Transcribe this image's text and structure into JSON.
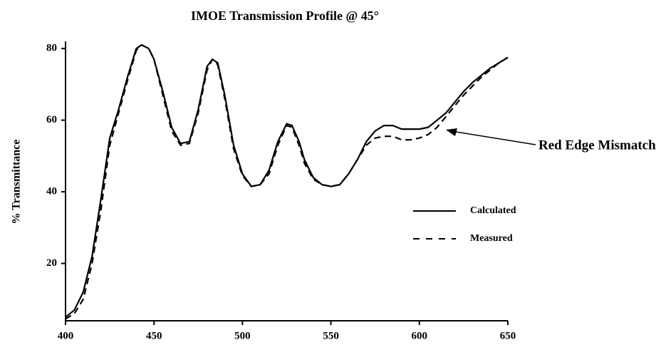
{
  "chart_data": {
    "type": "line",
    "title": "IMOE Transmission Profile @ 45°",
    "y_label": "% Transmittance",
    "annotation": "Red Edge Mismatch",
    "x": [
      400,
      405,
      410,
      415,
      420,
      425,
      430,
      435,
      440,
      443,
      447,
      450,
      455,
      460,
      465,
      470,
      475,
      480,
      483,
      486,
      490,
      495,
      500,
      505,
      510,
      515,
      520,
      525,
      528,
      532,
      535,
      540,
      545,
      550,
      555,
      560,
      565,
      570,
      575,
      580,
      585,
      590,
      595,
      600,
      605,
      610,
      615,
      620,
      625,
      630,
      635,
      640,
      645,
      650
    ],
    "series": [
      {
        "name": "Calculated",
        "color": "#000000",
        "dash": false,
        "values": [
          5,
          7,
          12,
          22,
          38,
          55,
          63,
          72,
          80,
          81,
          80,
          77,
          68,
          58,
          53.5,
          54,
          63,
          75,
          77,
          76,
          67,
          53,
          45,
          41.5,
          42,
          46,
          54,
          59,
          58.5,
          54,
          49,
          44,
          42,
          41.5,
          42,
          45,
          49,
          54,
          57,
          58.5,
          58.5,
          57.5,
          57.5,
          57.5,
          58,
          60,
          62,
          65,
          68,
          70.5,
          72.5,
          74.5,
          76,
          77.5
        ]
      },
      {
        "name": "Measured",
        "color": "#000000",
        "dash": true,
        "values": [
          4.5,
          6,
          10,
          20,
          35,
          53,
          62,
          71,
          79.5,
          81,
          80,
          77,
          67,
          57,
          53,
          53.5,
          62,
          74,
          77,
          75.5,
          66,
          52,
          44.5,
          41.5,
          42,
          45,
          53,
          58.5,
          58,
          53,
          48,
          43.5,
          42,
          41.5,
          42,
          45,
          49,
          53,
          55,
          55.5,
          55.5,
          54.5,
          54.5,
          55,
          56,
          58,
          61,
          64,
          67,
          69.5,
          72,
          74,
          76,
          77.5
        ]
      }
    ],
    "xlim": [
      400,
      650
    ],
    "xticks": [
      400,
      450,
      500,
      550,
      600,
      650
    ],
    "ylim": [
      4,
      82
    ],
    "yticks": [
      20,
      40,
      60,
      80
    ]
  }
}
